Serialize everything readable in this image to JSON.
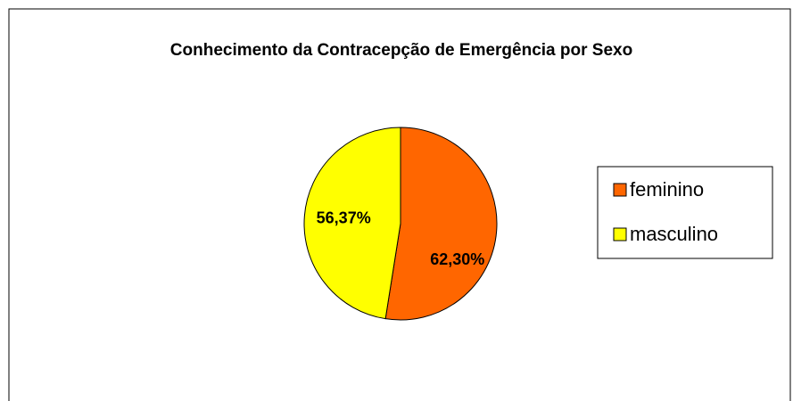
{
  "chart_data": {
    "type": "pie",
    "title": "Conhecimento da Contracepção de Emergência por Sexo",
    "categories": [
      "feminino",
      "masculino"
    ],
    "values": [
      62.3,
      56.37
    ],
    "value_labels": [
      "62,30%",
      "56,37%"
    ],
    "colors": [
      "#ff6600",
      "#ffff00"
    ],
    "legend": "right"
  }
}
